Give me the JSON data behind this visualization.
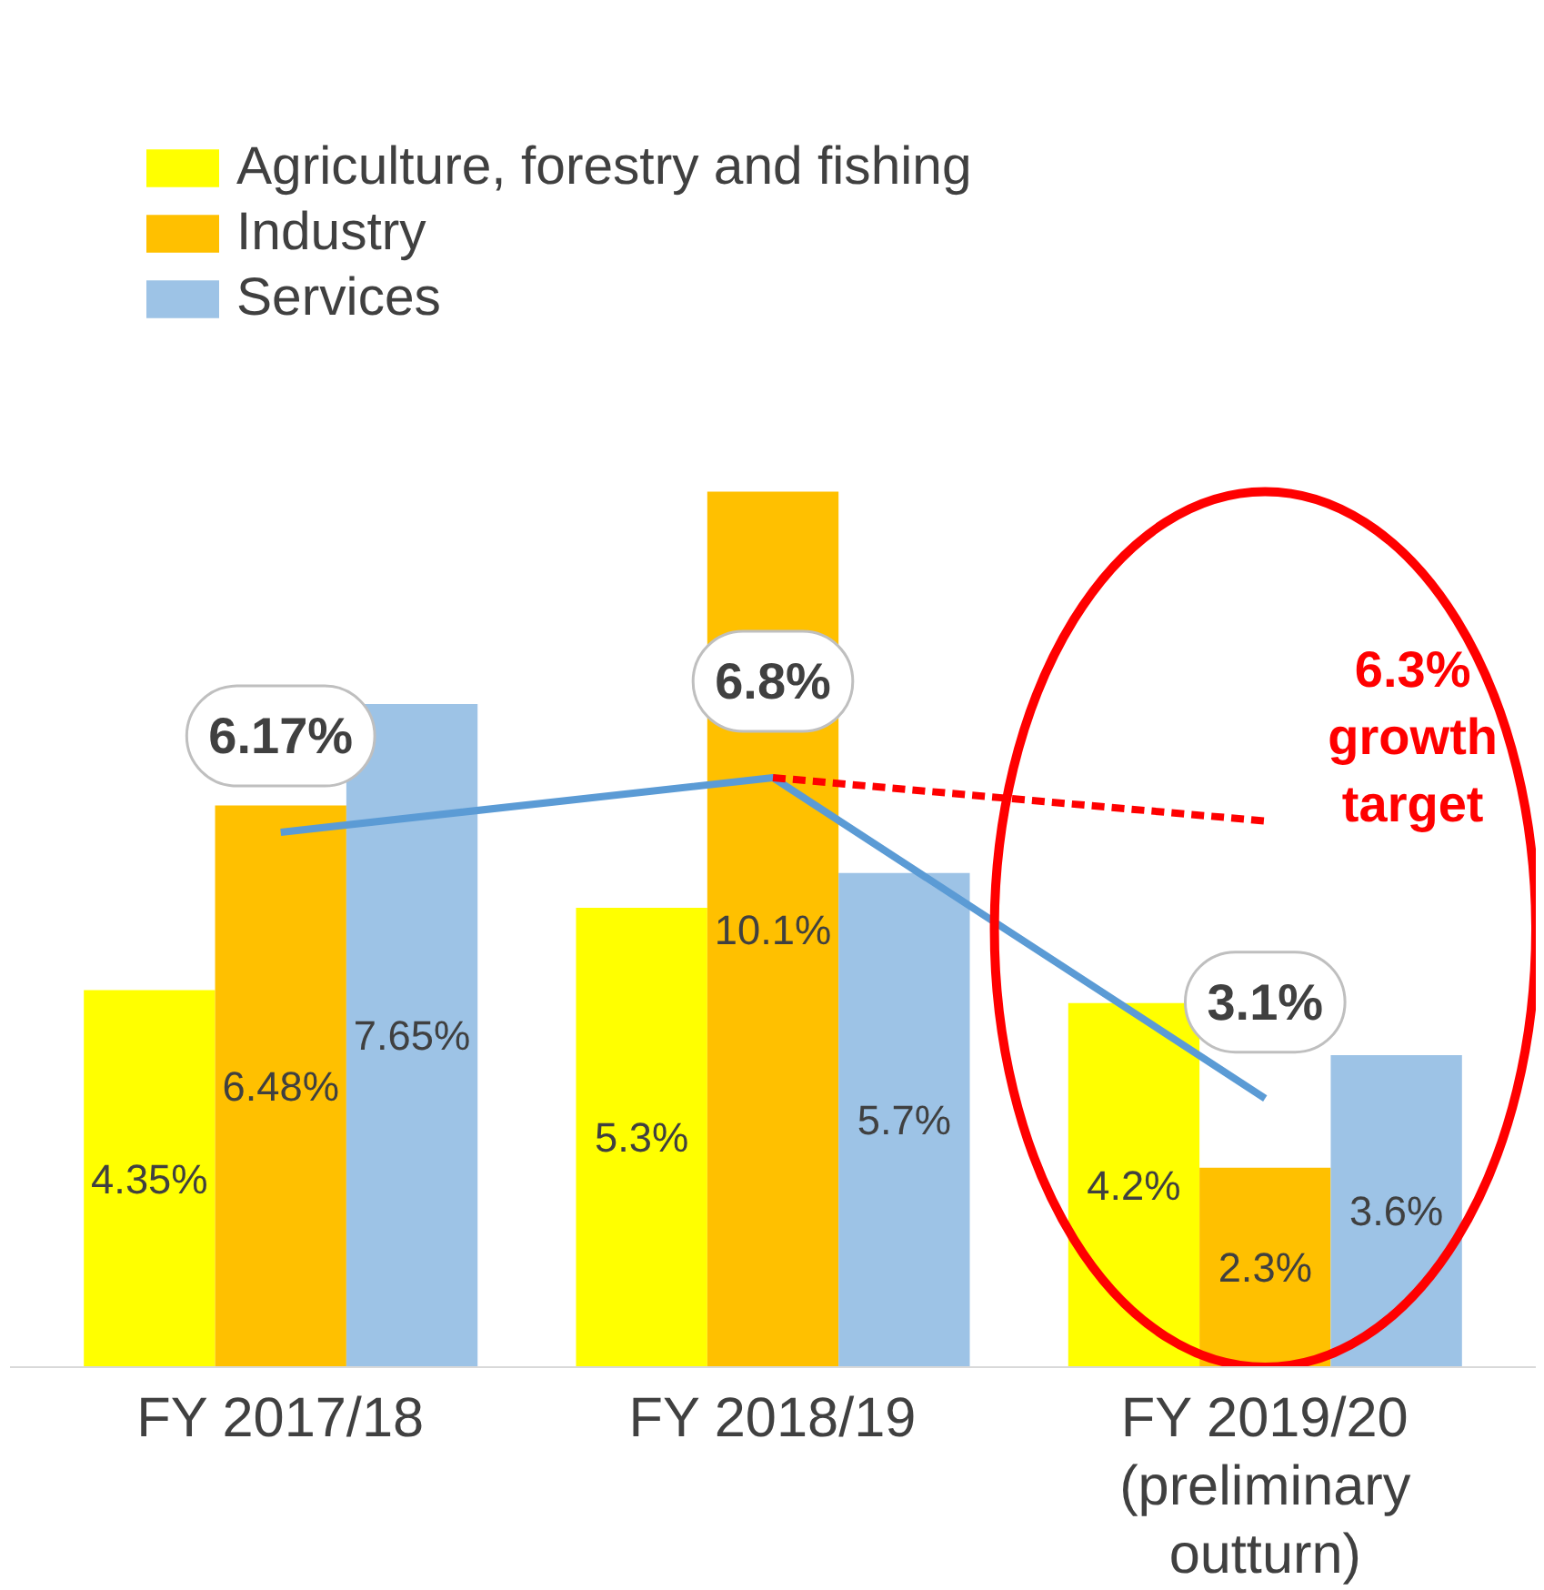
{
  "chart_data": {
    "type": "bar",
    "categories": [
      "FY 2017/18",
      "FY 2018/19",
      "FY 2019/20\n(preliminary\noutturn)"
    ],
    "series": [
      {
        "name": "Agriculture, forestry and fishing",
        "color": "#ffff00",
        "values": [
          4.35,
          5.3,
          4.2
        ],
        "value_labels": [
          "4.35%",
          "5.3%",
          "4.2%"
        ]
      },
      {
        "name": "Industry",
        "color": "#ffc000",
        "values": [
          6.48,
          10.1,
          2.3
        ],
        "value_labels": [
          "6.48%",
          "10.1%",
          "2.3%"
        ]
      },
      {
        "name": "Services",
        "color": "#9dc3e6",
        "values": [
          7.65,
          5.7,
          3.6
        ],
        "value_labels": [
          "7.65%",
          "5.7%",
          "3.6%"
        ]
      },
      {
        "type": "line",
        "color": "#5b9bd5",
        "values": [
          6.17,
          6.8,
          3.1
        ],
        "value_labels": [
          "6.17%",
          "6.8%",
          "3.1%"
        ]
      },
      {
        "type": "line",
        "color": "#ff0000",
        "line_style": "dashed",
        "values": [
          null,
          6.8,
          6.3
        ]
      }
    ],
    "annotations": [
      "6.3%\ngrowth\ntarget"
    ],
    "legend": "top left",
    "grid": false
  }
}
